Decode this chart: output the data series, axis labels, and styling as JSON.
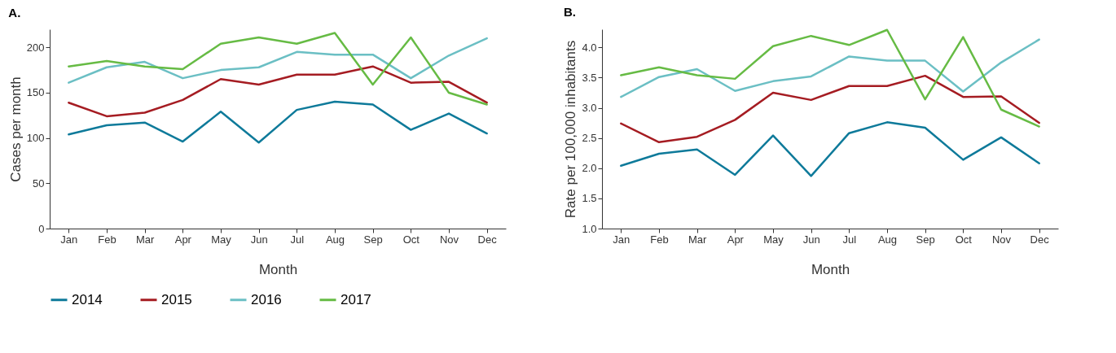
{
  "chart_data": [
    {
      "type": "line",
      "title": "A.",
      "xlabel": "Month",
      "ylabel": "Cases per month",
      "categories": [
        "Jan",
        "Feb",
        "Mar",
        "Apr",
        "May",
        "Jun",
        "Jul",
        "Aug",
        "Sep",
        "Oct",
        "Nov",
        "Dec"
      ],
      "ylim": [
        0,
        220
      ],
      "yticks": [
        0,
        50,
        100,
        150,
        200
      ],
      "legend": "bottom",
      "series": [
        {
          "name": "2014",
          "color": "#0e7a9a",
          "values": [
            104,
            114,
            117,
            96,
            129,
            95,
            131,
            140,
            137,
            109,
            127,
            105
          ]
        },
        {
          "name": "2015",
          "color": "#a51c22",
          "values": [
            139,
            124,
            128,
            142,
            165,
            159,
            170,
            170,
            179,
            161,
            162,
            139
          ]
        },
        {
          "name": "2016",
          "color": "#6bbfc4",
          "values": [
            161,
            178,
            184,
            166,
            175,
            178,
            195,
            192,
            192,
            166,
            191,
            210
          ]
        },
        {
          "name": "2017",
          "color": "#66bb44",
          "values": [
            179,
            185,
            179,
            176,
            204,
            211,
            204,
            216,
            159,
            211,
            150,
            137
          ]
        }
      ]
    },
    {
      "type": "line",
      "title": "B.",
      "xlabel": "Month",
      "ylabel": "Rate per 100,000 inhabitants",
      "categories": [
        "Jan",
        "Feb",
        "Mar",
        "Apr",
        "May",
        "Jun",
        "Jul",
        "Aug",
        "Sep",
        "Oct",
        "Nov",
        "Dec"
      ],
      "ylim": [
        1,
        4.3
      ],
      "yticks": [
        {
          "value": 1,
          "label": "1.0"
        },
        1.5,
        {
          "value": 2,
          "label": "2.0"
        },
        2.5,
        {
          "value": 3,
          "label": "3.0"
        },
        3.5,
        {
          "value": 4,
          "label": "4.0"
        }
      ],
      "legend": "bottom",
      "series": [
        {
          "name": "2014",
          "color": "#0e7a9a",
          "values": [
            2.04,
            2.24,
            2.31,
            1.89,
            2.54,
            1.87,
            2.58,
            2.76,
            2.67,
            2.14,
            2.51,
            2.08
          ]
        },
        {
          "name": "2015",
          "color": "#a51c22",
          "values": [
            2.74,
            2.43,
            2.52,
            2.8,
            3.25,
            3.13,
            3.36,
            3.36,
            3.53,
            3.18,
            3.19,
            2.75
          ]
        },
        {
          "name": "2016",
          "color": "#6bbfc4",
          "values": [
            3.18,
            3.51,
            3.64,
            3.28,
            3.44,
            3.52,
            3.85,
            3.78,
            3.78,
            3.27,
            3.75,
            4.13
          ]
        },
        {
          "name": "2017",
          "color": "#66bb44",
          "values": [
            3.54,
            3.67,
            3.54,
            3.48,
            4.02,
            4.19,
            4.04,
            4.29,
            3.14,
            4.17,
            2.97,
            2.69
          ]
        }
      ]
    }
  ]
}
